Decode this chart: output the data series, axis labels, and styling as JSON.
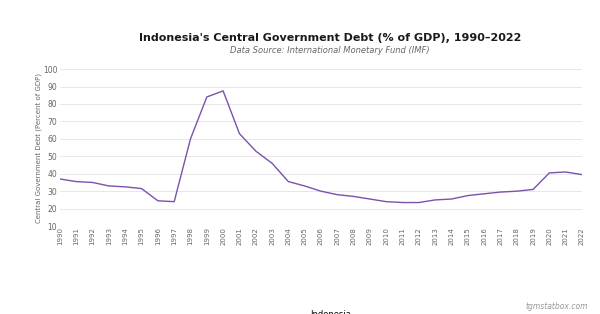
{
  "title": "Indonesia's Central Government Debt (% of GDP), 1990–2022",
  "subtitle": "Data Source: International Monetary Fund (IMF)",
  "ylabel": "Central Government Debt (Percent of GDP)",
  "legend_label": "Indonesia",
  "watermark": "tgmstatbox.com",
  "line_color": "#7B52AB",
  "background_color": "#ffffff",
  "header_bg": "#1a1a1a",
  "grid_color": "#dddddd",
  "ylim": [
    10,
    100
  ],
  "yticks": [
    10,
    20,
    30,
    40,
    50,
    60,
    70,
    80,
    90,
    100
  ],
  "years": [
    1990,
    1991,
    1992,
    1993,
    1994,
    1995,
    1996,
    1997,
    1998,
    1999,
    2000,
    2001,
    2002,
    2003,
    2004,
    2005,
    2006,
    2007,
    2008,
    2009,
    2010,
    2011,
    2012,
    2013,
    2014,
    2015,
    2016,
    2017,
    2018,
    2019,
    2020,
    2021,
    2022
  ],
  "values": [
    37.0,
    35.5,
    35.0,
    33.0,
    32.5,
    31.5,
    24.5,
    24.0,
    60.0,
    84.0,
    87.5,
    63.0,
    53.0,
    46.0,
    35.5,
    33.0,
    30.0,
    28.0,
    27.0,
    25.5,
    24.0,
    23.5,
    23.5,
    25.0,
    25.5,
    27.5,
    28.5,
    29.5,
    30.0,
    31.0,
    40.5,
    41.0,
    39.5
  ]
}
